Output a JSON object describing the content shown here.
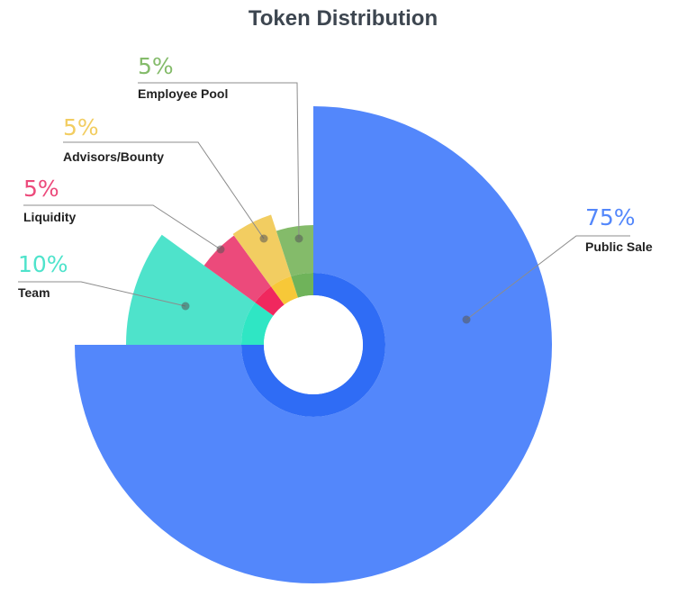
{
  "chart_data": {
    "type": "pie",
    "title": "Token Distribution",
    "unit": "%",
    "slices": [
      {
        "label": "Public Sale",
        "value": 75,
        "value_label": "75%",
        "color": "#5387fb",
        "inner_color": "#2f6cf5"
      },
      {
        "label": "Team",
        "value": 10,
        "value_label": "10%",
        "color": "#4ee3cb",
        "inner_color": "#2fe6c4"
      },
      {
        "label": "Liquidity",
        "value": 5,
        "value_label": "5%",
        "color": "#ec4a7b",
        "inner_color": "#f0285e"
      },
      {
        "label": "Advisors/Bounty",
        "value": 5,
        "value_label": "5%",
        "color": "#f2cd61",
        "inner_color": "#f7c838"
      },
      {
        "label": "Employee Pool",
        "value": 5,
        "value_label": "5%",
        "color": "#84bb6a",
        "inner_color": "#6fb35a"
      }
    ],
    "legend": "callouts with leader lines"
  }
}
